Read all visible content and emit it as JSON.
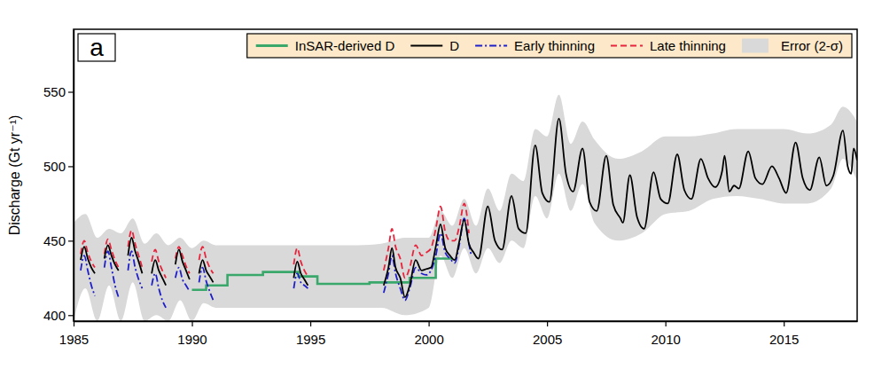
{
  "chart_data": {
    "type": "line",
    "title": "a",
    "y_label": "Discharge (Gt yr⁻¹)",
    "xlim": [
      1985,
      2018.1
    ],
    "xticks": [
      1985,
      1990,
      1995,
      2000,
      2005,
      2010,
      2015
    ],
    "ylim": [
      396,
      592
    ],
    "yticks": [
      400,
      450,
      500,
      550
    ],
    "grid": false,
    "legend": "top",
    "series": [
      {
        "name": "InSAR-derived D",
        "color": "#3aa86b",
        "type": "step",
        "line_style": "solid",
        "x": [
          1990,
          1990.6,
          1991.5,
          1993,
          1994.5,
          1995.3,
          1997.5,
          1999.2,
          2000.3,
          2001.0
        ],
        "values": [
          417,
          420,
          427,
          429,
          426,
          421,
          422,
          425,
          438,
          438
        ]
      },
      {
        "name": "D",
        "color": "#000000",
        "type": "line",
        "line_style": "solid",
        "x": [
          1985.3,
          1985.45,
          1985.6,
          1985.75,
          1985.9,
          1986.1,
          1986.3,
          1986.45,
          1986.6,
          1986.75,
          1986.9,
          1987.1,
          1987.3,
          1987.45,
          1987.6,
          1987.75,
          1987.9,
          1988.1,
          1988.3,
          1988.45,
          1988.6,
          1988.75,
          1988.9,
          1989.1,
          1989.3,
          1989.45,
          1989.6,
          1989.75,
          1989.9,
          1990.1,
          1990.3,
          1990.45,
          1990.6,
          1990.75,
          1990.9,
          1991.0,
          1994.3,
          1994.45,
          1994.6,
          1994.75,
          1994.9,
          1995.0,
          1998.1,
          1998.3,
          1998.45,
          1998.6,
          1998.8,
          1999.0,
          1999.2,
          1999.45,
          1999.7,
          1999.9,
          2000.1,
          2000.3,
          2000.5,
          2000.7,
          2000.9,
          2001.1,
          2001.3,
          2001.5,
          2001.7,
          2001.9,
          2002.1,
          2002.5,
          2002.8,
          2003.1,
          2003.5,
          2003.8,
          2004.1,
          2004.5,
          2004.8,
          2005.1,
          2005.5,
          2005.8,
          2006.1,
          2006.5,
          2006.8,
          2007.1,
          2007.5,
          2007.8,
          2008.1,
          2008.2,
          2008.5,
          2008.8,
          2009.1,
          2009.5,
          2009.8,
          2010.1,
          2010.5,
          2010.8,
          2011.1,
          2011.5,
          2011.8,
          2012.1,
          2012.4,
          2012.5,
          2012.7,
          2012.9,
          2013.1,
          2013.5,
          2013.8,
          2014.1,
          2014.5,
          2014.8,
          2015.1,
          2015.5,
          2015.8,
          2016.1,
          2016.5,
          2016.8,
          2017.1,
          2017.5,
          2017.7,
          2017.85,
          2017.95,
          2018.1
        ],
        "values": [
          437,
          446,
          438,
          432,
          428,
          null,
          438,
          447,
          440,
          434,
          430,
          null,
          440,
          452,
          443,
          436,
          428,
          null,
          428,
          437,
          430,
          425,
          420,
          null,
          434,
          444,
          436,
          430,
          424,
          null,
          428,
          437,
          430,
          426,
          422,
          null,
          425,
          436,
          428,
          424,
          420,
          null,
          420,
          432,
          445,
          432,
          425,
          412,
          420,
          437,
          430,
          431,
          432,
          446,
          461,
          445,
          440,
          437,
          450,
          464,
          448,
          442,
          438,
          473,
          450,
          444,
          480,
          458,
          455,
          514,
          482,
          476,
          532,
          495,
          483,
          512,
          476,
          470,
          507,
          474,
          465,
          462,
          494,
          466,
          458,
          496,
          478,
          475,
          508,
          484,
          478,
          505,
          492,
          486,
          497,
          507,
          483,
          487,
          485,
          510,
          492,
          488,
          500,
          492,
          482,
          516,
          492,
          484,
          506,
          487,
          494,
          524,
          500,
          495,
          512,
          504
        ]
      },
      {
        "name": "Early thinning",
        "color": "#1f1fc8",
        "type": "line",
        "line_style": "dashdot",
        "x": [
          1985.3,
          1985.45,
          1985.6,
          1985.75,
          1985.9,
          1986.1,
          1986.3,
          1986.45,
          1986.6,
          1986.75,
          1986.9,
          1987.1,
          1987.3,
          1987.45,
          1987.6,
          1987.75,
          1987.9,
          1988.1,
          1988.3,
          1988.45,
          1988.6,
          1988.75,
          1988.9,
          1989.1,
          1989.3,
          1989.45,
          1989.6,
          1989.75,
          1989.9,
          1990.1,
          1990.3,
          1990.45,
          1990.6,
          1990.75,
          1990.9,
          1991.0,
          1994.3,
          1994.45,
          1994.6,
          1994.75,
          1994.9,
          1995.0,
          1998.1,
          1998.3,
          1998.45,
          1998.6,
          1998.8,
          1999.0,
          1999.2,
          1999.45,
          1999.7,
          1999.9,
          2000.1,
          2000.3,
          2000.5,
          2000.7,
          2000.9,
          2001.1,
          2001.3,
          2001.5,
          2001.7,
          2001.8
        ],
        "values": [
          430,
          440,
          430,
          420,
          413,
          null,
          432,
          443,
          432,
          420,
          412,
          null,
          430,
          443,
          432,
          424,
          418,
          null,
          420,
          428,
          418,
          410,
          405,
          null,
          425,
          432,
          424,
          420,
          416,
          null,
          422,
          432,
          423,
          416,
          410,
          null,
          418,
          428,
          422,
          420,
          418,
          null,
          415,
          428,
          440,
          428,
          418,
          410,
          418,
          432,
          428,
          427,
          430,
          440,
          455,
          442,
          438,
          435,
          448,
          465,
          448,
          440
        ]
      },
      {
        "name": "Late thinning",
        "color": "#e8243c",
        "type": "line",
        "line_style": "dashed",
        "x": [
          1985.3,
          1985.45,
          1985.6,
          1985.75,
          1985.9,
          1986.1,
          1986.3,
          1986.45,
          1986.6,
          1986.75,
          1986.9,
          1987.1,
          1987.3,
          1987.45,
          1987.6,
          1987.75,
          1987.9,
          1988.1,
          1988.3,
          1988.45,
          1988.6,
          1988.75,
          1988.9,
          1989.1,
          1989.3,
          1989.45,
          1989.6,
          1989.75,
          1989.9,
          1990.1,
          1990.3,
          1990.45,
          1990.6,
          1990.75,
          1990.9,
          1991.0,
          1994.3,
          1994.45,
          1994.6,
          1994.75,
          1994.9,
          1995.0,
          1998.1,
          1998.3,
          1998.45,
          1998.6,
          1998.8,
          1999.0,
          1999.2,
          1999.45,
          1999.7,
          1999.9,
          2000.1,
          2000.3,
          2000.5,
          2000.7,
          2000.9,
          2001.1,
          2001.3,
          2001.5,
          2001.7
        ],
        "values": [
          441,
          450,
          442,
          436,
          432,
          null,
          441,
          451,
          444,
          437,
          432,
          null,
          446,
          457,
          448,
          440,
          432,
          null,
          436,
          444,
          436,
          430,
          425,
          null,
          438,
          446,
          440,
          433,
          428,
          null,
          437,
          446,
          438,
          432,
          428,
          null,
          434,
          445,
          436,
          430,
          426,
          null,
          430,
          445,
          458,
          446,
          438,
          425,
          432,
          447,
          440,
          442,
          445,
          458,
          473,
          456,
          450,
          450,
          460,
          475,
          455
        ]
      },
      {
        "name": "Error (2-σ)",
        "color": "#d9d9d9",
        "type": "area",
        "x": [
          1985,
          1985.5,
          1986,
          1986.5,
          1987,
          1987.5,
          1988,
          1988.5,
          1989,
          1989.5,
          1990,
          1990.5,
          1991,
          1993,
          1995,
          1997,
          1998,
          1999,
          2000,
          2000.5,
          2001,
          2001.5,
          2002,
          2002.5,
          2003,
          2003.5,
          2004,
          2004.5,
          2005,
          2005.5,
          2006,
          2006.5,
          2007,
          2008,
          2009,
          2010,
          2011,
          2012,
          2013,
          2014,
          2015,
          2016,
          2017,
          2017.5,
          2018.1
        ],
        "upper": [
          462,
          468,
          452,
          458,
          455,
          465,
          448,
          455,
          447,
          452,
          445,
          450,
          447,
          447,
          447,
          447,
          448,
          452,
          452,
          470,
          460,
          478,
          460,
          485,
          470,
          495,
          490,
          525,
          520,
          548,
          515,
          530,
          518,
          505,
          510,
          520,
          520,
          522,
          525,
          525,
          525,
          522,
          528,
          540,
          530
        ],
        "lower": [
          396,
          418,
          396,
          420,
          396,
          422,
          396,
          400,
          396,
          410,
          396,
          408,
          405,
          405,
          405,
          405,
          405,
          400,
          405,
          440,
          425,
          445,
          428,
          445,
          435,
          450,
          445,
          480,
          465,
          495,
          470,
          488,
          462,
          450,
          455,
          468,
          470,
          478,
          480,
          478,
          475,
          475,
          485,
          505,
          490
        ]
      }
    ]
  }
}
